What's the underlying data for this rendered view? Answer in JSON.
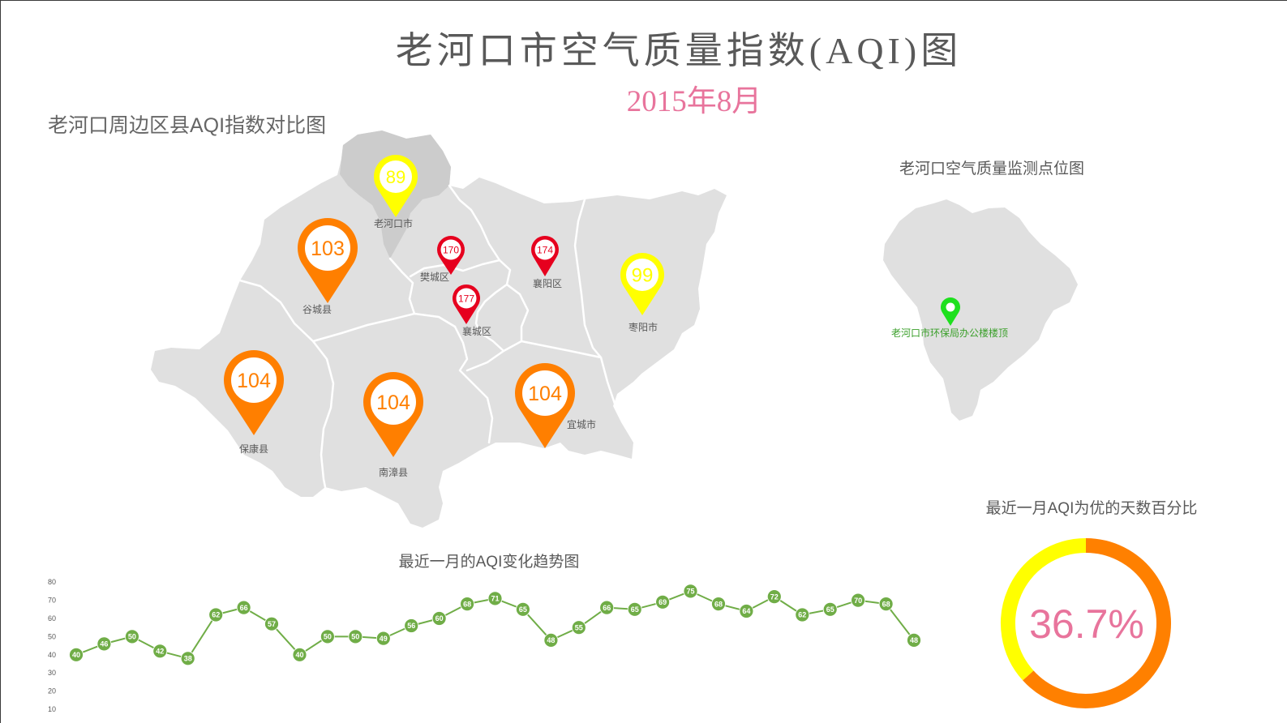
{
  "header": {
    "title": "老河口市空气质量指数(AQI)图",
    "subtitle": "2015年8月"
  },
  "map": {
    "title": "老河口周边区县AQI指数对比图",
    "pins": [
      {
        "name": "老河口市",
        "aqi": "89",
        "color": "#ffff00"
      },
      {
        "name": "谷城县",
        "aqi": "103",
        "color": "#ff7f00"
      },
      {
        "name": "樊城区",
        "aqi": "170",
        "color": "#e6001e"
      },
      {
        "name": "襄阳区",
        "aqi": "174",
        "color": "#e6001e"
      },
      {
        "name": "襄城区",
        "aqi": "177",
        "color": "#e6001e"
      },
      {
        "name": "枣阳市",
        "aqi": "99",
        "color": "#ffff00"
      },
      {
        "name": "保康县",
        "aqi": "104",
        "color": "#ff7f00"
      },
      {
        "name": "南漳县",
        "aqi": "104",
        "color": "#ff7f00"
      },
      {
        "name": "宜城市",
        "aqi": "104",
        "color": "#ff7f00"
      }
    ]
  },
  "monitor_map": {
    "title": "老河口空气质量监测点位图",
    "site": {
      "name": "老河口市环保局办公楼楼顶",
      "color": "#1ee01e",
      "label_color": "#3a9f2a"
    }
  },
  "chart_data": [
    {
      "type": "line",
      "title": "最近一月的AQI变化趋势图",
      "yticks": [
        80,
        70,
        60,
        50,
        40,
        30,
        20,
        10
      ],
      "ylim": [
        0,
        80
      ],
      "grid": false,
      "data_labels": true,
      "color": "#70ad47",
      "values": [
        40,
        46,
        50,
        42,
        38,
        62,
        66,
        57,
        40,
        50,
        50,
        49,
        56,
        60,
        68,
        71,
        65,
        48,
        55,
        66,
        65,
        69,
        75,
        68,
        64,
        72,
        62,
        65,
        70,
        68,
        48
      ]
    },
    {
      "type": "pie",
      "title": "最近一月AQI为优的天数百分比",
      "values": [
        63.3,
        36.7
      ],
      "colors": [
        "#ff8000",
        "#ffff00"
      ],
      "center_label": "36.7%",
      "center_label_color": "#e8749c"
    }
  ],
  "colors": {
    "title": "#595959",
    "subtitle": "#e8749c",
    "map_fill": "#e0e0e0",
    "map_highlight": "#cccccc"
  }
}
